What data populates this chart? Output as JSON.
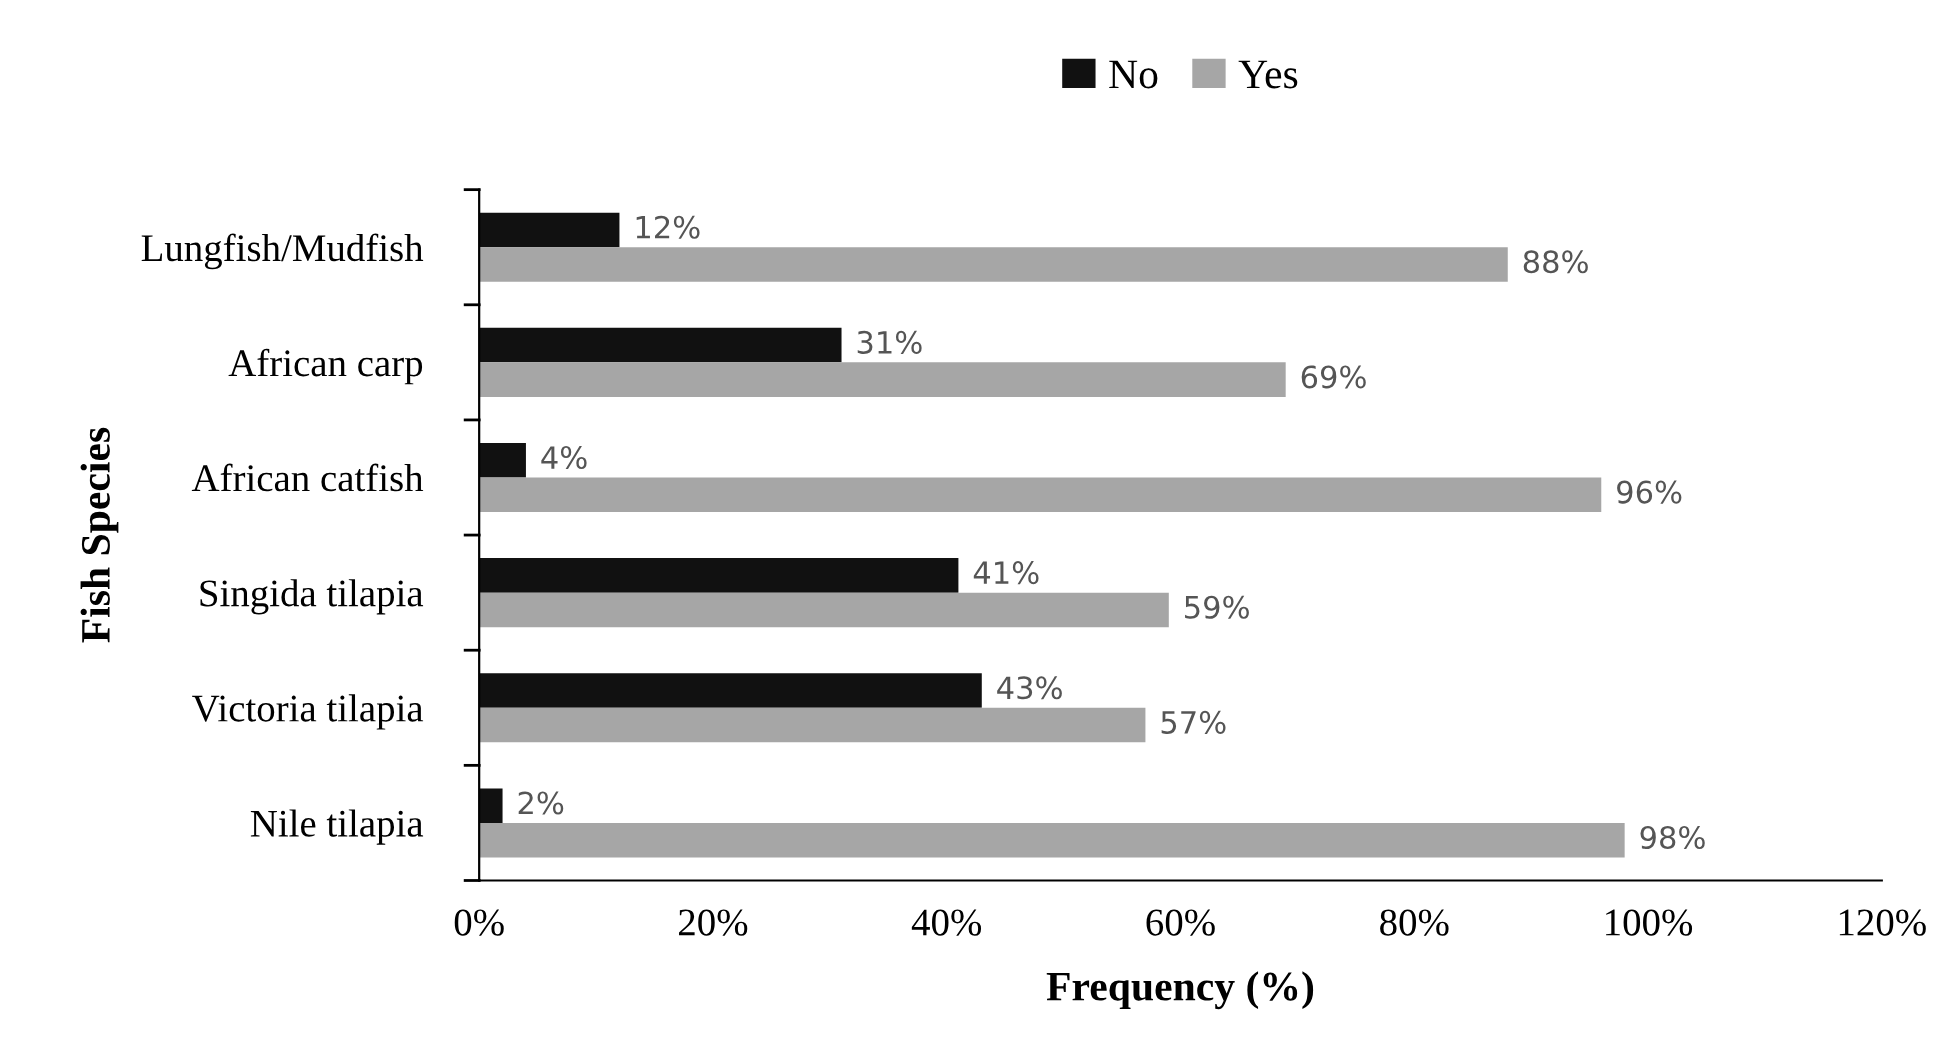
{
  "chart_data": {
    "type": "bar",
    "orientation": "horizontal",
    "xlabel": "Frequency (%)",
    "ylabel": "Fish Species",
    "categories": [
      "Lungfish/Mudfish",
      "African carp",
      "African catfish",
      "Singida tilapia",
      "Victoria tilapia",
      "Nile tilapia"
    ],
    "series": [
      {
        "name": "No",
        "color": "#111111",
        "values": [
          12,
          31,
          4,
          41,
          43,
          2
        ],
        "value_labels": [
          "12%",
          "31%",
          "4%",
          "41%",
          "43%",
          "2%"
        ]
      },
      {
        "name": "Yes",
        "color": "#a6a6a6",
        "values": [
          88,
          69,
          96,
          59,
          57,
          98
        ],
        "value_labels": [
          "88%",
          "69%",
          "96%",
          "59%",
          "57%",
          "98%"
        ]
      }
    ],
    "xlim": [
      0,
      120
    ],
    "xticks": [
      {
        "value": 0,
        "label": "0%"
      },
      {
        "value": 20,
        "label": "20%"
      },
      {
        "value": 40,
        "label": "40%"
      },
      {
        "value": 60,
        "label": "60%"
      },
      {
        "value": 80,
        "label": "80%"
      },
      {
        "value": 100,
        "label": "100%"
      },
      {
        "value": 120,
        "label": "120%"
      }
    ],
    "legend": "top",
    "grid": false
  }
}
